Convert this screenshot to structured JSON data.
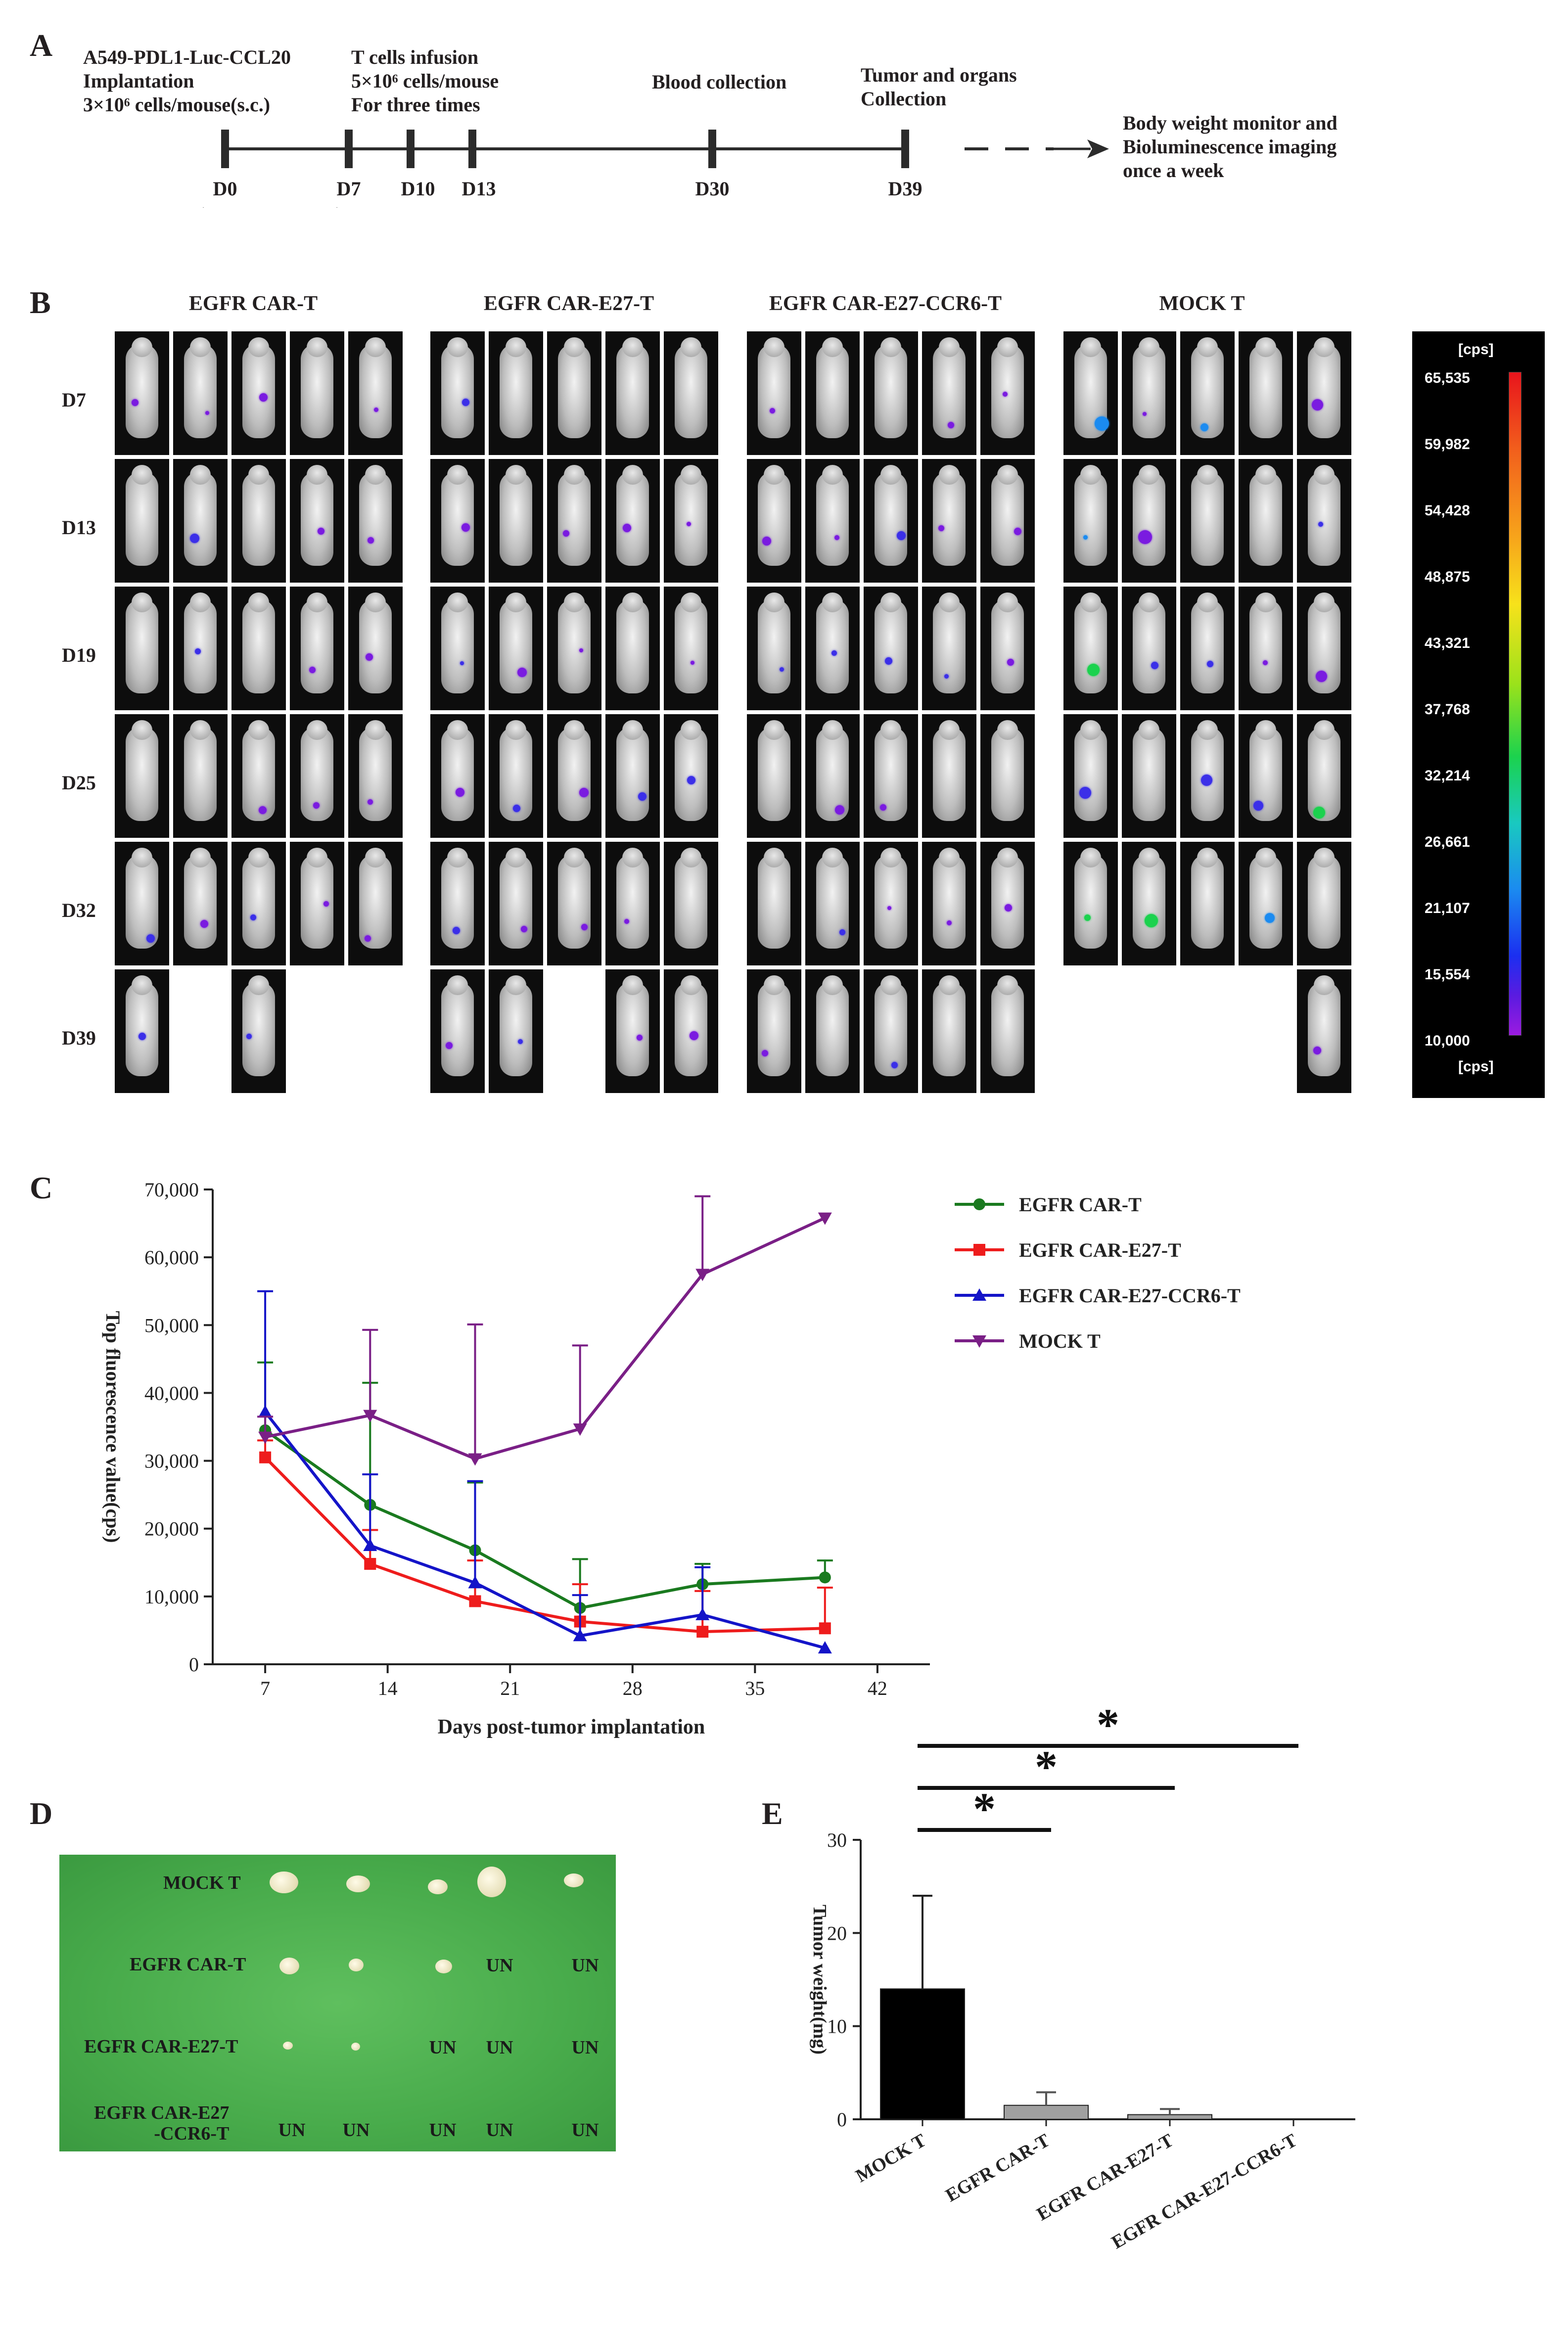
{
  "panels": {
    "A": "A",
    "B": "B",
    "C": "C",
    "D": "D",
    "E": "E"
  },
  "timeline": {
    "labels": [
      {
        "id": "implant",
        "text": "A549-PDL1-Luc-CCL20\nImplantation\n3×10⁶ cells/mouse(s.c.)"
      },
      {
        "id": "tcell",
        "text": "T cells infusion\n5×10⁶ cells/mouse\nFor three times"
      },
      {
        "id": "blood",
        "text": "Blood collection"
      },
      {
        "id": "tumor",
        "text": "Tumor and organs\nCollection"
      },
      {
        "id": "monitor",
        "text": "Body weight monitor and\nBioluminescence imaging\nonce a week"
      }
    ],
    "days": [
      "D0",
      "D7",
      "D10",
      "D13",
      "D30",
      "D39"
    ]
  },
  "imaging": {
    "groups": [
      "EGFR CAR-T",
      "EGFR CAR-E27-T",
      "EGFR CAR-E27-CCR6-T",
      "MOCK T"
    ],
    "rows": [
      "D7",
      "D13",
      "D19",
      "D25",
      "D32",
      "D39"
    ],
    "colorbar": {
      "unit": "[cps]",
      "ticks": [
        "65,535",
        "59,982",
        "54,428",
        "48,875",
        "43,321",
        "37,768",
        "32,214",
        "26,661",
        "21,107",
        "15,554",
        "10,000"
      ]
    }
  },
  "chart_data": [
    {
      "type": "line",
      "title": "",
      "xlabel": "Days post-tumor implantation",
      "ylabel": "Top fluorescence value(cps)",
      "xlim": [
        4,
        45
      ],
      "ylim": [
        0,
        70000
      ],
      "xticks": [
        7,
        14,
        21,
        28,
        35,
        42
      ],
      "yticks": [
        0,
        10000,
        20000,
        30000,
        40000,
        50000,
        60000,
        70000
      ],
      "ytick_labels": [
        "0",
        "10,000",
        "20,000",
        "30,000",
        "40,000",
        "50,000",
        "60,000",
        "70,000"
      ],
      "x": [
        7,
        13,
        19,
        25,
        32,
        39
      ],
      "series": [
        {
          "name": "EGFR CAR-T",
          "color": "#1a7a1f",
          "marker": "circle",
          "values": [
            34500,
            23500,
            16800,
            8300,
            11800,
            12800
          ],
          "err": [
            10000,
            18000,
            10000,
            7200,
            3000,
            2500
          ]
        },
        {
          "name": "EGFR CAR-E27-T",
          "color": "#ee1c1c",
          "marker": "square",
          "values": [
            30500,
            14800,
            9300,
            6300,
            4800,
            5300
          ],
          "err": [
            2500,
            5000,
            6000,
            5500,
            6000,
            6000
          ]
        },
        {
          "name": "EGFR CAR-E27-CCR6-T",
          "color": "#1414c8",
          "marker": "triangle-up",
          "values": [
            37200,
            17500,
            12000,
            4200,
            7300,
            2400
          ],
          "err": [
            17800,
            10500,
            15000,
            6000,
            7000,
            0
          ]
        },
        {
          "name": "MOCK T",
          "color": "#7a1f86",
          "marker": "triangle-down",
          "values": [
            33500,
            36700,
            30300,
            34700,
            57500,
            65800
          ],
          "err": [
            3000,
            12600,
            19800,
            12300,
            11500,
            0
          ]
        }
      ]
    },
    {
      "type": "bar",
      "title": "",
      "xlabel": "",
      "ylabel": "Tumor weight(mg)",
      "ylim": [
        0,
        30
      ],
      "yticks": [
        0,
        10,
        20,
        30
      ],
      "categories": [
        "MOCK T",
        "EGFR CAR-T",
        "EGFR CAR-E27-T",
        "EGFR CAR-E27-CCR6-T"
      ],
      "values": [
        14,
        1.5,
        0.5,
        0
      ],
      "err": [
        10,
        1.4,
        0.6,
        0
      ],
      "colors": [
        "#000000",
        "#a0a0a0",
        "#a0a0a0",
        "#a0a0a0"
      ],
      "significance": [
        {
          "from": "MOCK T",
          "to": "EGFR CAR-T",
          "label": "*"
        },
        {
          "from": "MOCK T",
          "to": "EGFR CAR-E27-T",
          "label": "*"
        },
        {
          "from": "MOCK T",
          "to": "EGFR CAR-E27-CCR6-T",
          "label": "*"
        }
      ]
    }
  ],
  "photo": {
    "row_labels": [
      "MOCK T",
      "EGFR CAR-T",
      "EGFR CAR-E27-T",
      "EGFR CAR-E27\n-CCR6-T"
    ],
    "un_label": "UN"
  }
}
